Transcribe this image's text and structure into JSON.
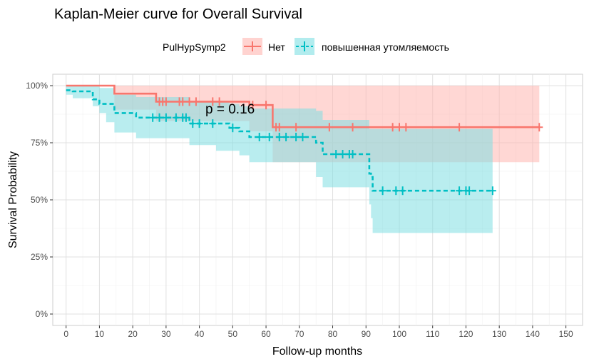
{
  "chart_data": {
    "type": "line",
    "title": "Kaplan-Meier curve for Overall Survival",
    "xlabel": "Follow-up months",
    "ylabel": "Survival Probability",
    "xlim": [
      -4,
      155
    ],
    "ylim": [
      -0.05,
      1.05
    ],
    "x_ticks": [
      0,
      10,
      20,
      30,
      40,
      50,
      60,
      70,
      80,
      90,
      100,
      110,
      120,
      130,
      140,
      150
    ],
    "y_ticks": [
      0,
      0.25,
      0.5,
      0.75,
      1.0
    ],
    "y_tick_labels": [
      "0%",
      "25%",
      "50%",
      "75%",
      "100%"
    ],
    "grid": true,
    "legend_position": "top",
    "legend": {
      "title": "PulHypSymp2",
      "entries": [
        "Нет",
        "повышенная утомляемость"
      ]
    },
    "annotation": "p = 0.16",
    "series": [
      {
        "name": "Нет",
        "color": "#F8766D",
        "band_color": "#FFB6B0",
        "linestyle": "solid",
        "steps": [
          [
            0,
            1.0
          ],
          [
            14.5,
            0.965
          ],
          [
            27,
            0.93
          ],
          [
            55,
            0.915
          ],
          [
            62,
            0.818
          ],
          [
            142,
            0.818
          ]
        ],
        "upper": [
          [
            0,
            1.0
          ],
          [
            142,
            1.0
          ]
        ],
        "lower": [
          [
            0,
            1.0
          ],
          [
            14.5,
            0.895
          ],
          [
            27,
            0.845
          ],
          [
            55,
            0.8
          ],
          [
            62,
            0.665
          ],
          [
            142,
            0.665
          ]
        ],
        "censor": [
          [
            28,
            0.93
          ],
          [
            29,
            0.93
          ],
          [
            30,
            0.93
          ],
          [
            34,
            0.93
          ],
          [
            35,
            0.93
          ],
          [
            37,
            0.93
          ],
          [
            39,
            0.93
          ],
          [
            44,
            0.93
          ],
          [
            46,
            0.93
          ],
          [
            56,
            0.915
          ],
          [
            60,
            0.915
          ],
          [
            63,
            0.818
          ],
          [
            64,
            0.818
          ],
          [
            69,
            0.818
          ],
          [
            79,
            0.818
          ],
          [
            86,
            0.818
          ],
          [
            98,
            0.818
          ],
          [
            100,
            0.818
          ],
          [
            102,
            0.818
          ],
          [
            118,
            0.818
          ],
          [
            142,
            0.818
          ]
        ]
      },
      {
        "name": "повышенная утомляемость",
        "color": "#00BFC4",
        "band_color": "#7FDFE2",
        "linestyle": "dashed",
        "steps": [
          [
            0,
            0.98
          ],
          [
            2,
            0.975
          ],
          [
            8,
            0.94
          ],
          [
            10,
            0.92
          ],
          [
            14.5,
            0.88
          ],
          [
            21,
            0.86
          ],
          [
            37,
            0.834
          ],
          [
            49,
            0.815
          ],
          [
            52,
            0.8
          ],
          [
            55,
            0.775
          ],
          [
            75,
            0.75
          ],
          [
            77,
            0.7
          ],
          [
            91,
            0.615
          ],
          [
            91.5,
            0.6
          ],
          [
            92,
            0.54
          ],
          [
            128,
            0.54
          ]
        ],
        "upper": [
          [
            0,
            1.0
          ],
          [
            8,
            1.0
          ],
          [
            10,
            0.99
          ],
          [
            14.5,
            0.96
          ],
          [
            21,
            0.95
          ],
          [
            37,
            0.93
          ],
          [
            49,
            0.92
          ],
          [
            52,
            0.91
          ],
          [
            55,
            0.9
          ],
          [
            75,
            0.89
          ],
          [
            77,
            0.85
          ],
          [
            91,
            0.81
          ],
          [
            92,
            0.81
          ],
          [
            128,
            0.81
          ]
        ],
        "lower": [
          [
            0,
            0.96
          ],
          [
            2,
            0.945
          ],
          [
            8,
            0.91
          ],
          [
            10,
            0.88
          ],
          [
            12,
            0.84
          ],
          [
            14.5,
            0.795
          ],
          [
            21,
            0.77
          ],
          [
            37,
            0.74
          ],
          [
            45,
            0.715
          ],
          [
            52,
            0.695
          ],
          [
            55,
            0.665
          ],
          [
            75,
            0.6
          ],
          [
            77,
            0.555
          ],
          [
            91,
            0.48
          ],
          [
            91.5,
            0.42
          ],
          [
            92,
            0.355
          ],
          [
            128,
            0.355
          ]
        ],
        "censor": [
          [
            26,
            0.86
          ],
          [
            28,
            0.86
          ],
          [
            30,
            0.86
          ],
          [
            33,
            0.86
          ],
          [
            35,
            0.86
          ],
          [
            36,
            0.86
          ],
          [
            38,
            0.834
          ],
          [
            40,
            0.834
          ],
          [
            44,
            0.834
          ],
          [
            50,
            0.815
          ],
          [
            58,
            0.775
          ],
          [
            61,
            0.775
          ],
          [
            64,
            0.775
          ],
          [
            66,
            0.775
          ],
          [
            69,
            0.775
          ],
          [
            71,
            0.775
          ],
          [
            81,
            0.7
          ],
          [
            83,
            0.7
          ],
          [
            85,
            0.7
          ],
          [
            86,
            0.7
          ],
          [
            95,
            0.54
          ],
          [
            99,
            0.54
          ],
          [
            101,
            0.54
          ],
          [
            118,
            0.54
          ],
          [
            120,
            0.54
          ],
          [
            121,
            0.54
          ],
          [
            128,
            0.54
          ]
        ]
      }
    ]
  }
}
